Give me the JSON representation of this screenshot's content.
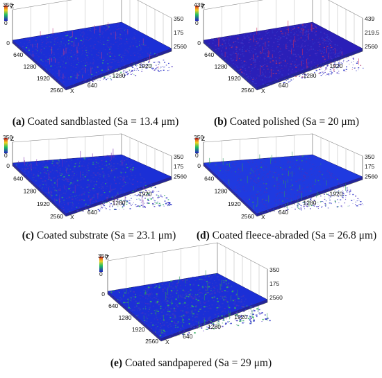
{
  "panels": [
    {
      "id": "a",
      "caption_letter": "(a)",
      "caption_text": " Coated sandblasted (Sa = 13.4 μm)",
      "z_max_label": "350",
      "z_min_label": "0",
      "z_axis_letter": "Z",
      "right_z_ticks": [
        "350",
        "175",
        "2560"
      ],
      "front_ticks": [
        "0",
        "640",
        "1280",
        "1920",
        "2560"
      ],
      "side_ticks": [
        "640",
        "1280",
        "1920"
      ],
      "x_axis_letter": "X",
      "surface": {
        "base": "#1b2fd6",
        "speckle": "#3bb56a",
        "spike": "#c03a8a",
        "roughness": 0.35
      }
    },
    {
      "id": "b",
      "caption_letter": "(b)",
      "caption_text": " Coated polished (Sa = 20 μm)",
      "z_max_label": "439",
      "z_min_label": "0",
      "z_axis_letter": "Z",
      "right_z_ticks": [
        "439",
        "219.5",
        "2560"
      ],
      "front_ticks": [
        "0",
        "640",
        "1280",
        "1920",
        "2560"
      ],
      "side_ticks": [
        "640",
        "1280",
        "1920"
      ],
      "x_axis_letter": "X",
      "surface": {
        "base": "#2a1fb8",
        "speckle": "#b03068",
        "spike": "#d02a5a",
        "roughness": 0.45
      }
    },
    {
      "id": "c",
      "caption_letter": "(c)",
      "caption_text": " Coated substrate (Sa = 23.1 μm)",
      "z_max_label": "350",
      "z_min_label": "0",
      "z_axis_letter": "Z",
      "right_z_ticks": [
        "350",
        "175",
        "2560"
      ],
      "front_ticks": [
        "0",
        "640",
        "1280",
        "1920",
        "2560"
      ],
      "side_ticks": [
        "640",
        "1280",
        "1920"
      ],
      "x_axis_letter": "X",
      "surface": {
        "base": "#1b2fd6",
        "speckle": "#2fa86a",
        "spike": "#7a2fb0",
        "roughness": 0.6
      }
    },
    {
      "id": "d",
      "caption_letter": "(d)",
      "caption_text": " Coated fleece-abraded (Sa = 26.8 μm)",
      "z_max_label": "350",
      "z_min_label": "0",
      "z_axis_letter": "Z",
      "right_z_ticks": [
        "350",
        "175",
        "2560"
      ],
      "front_ticks": [
        "0",
        "640",
        "1280",
        "1920",
        "2560"
      ],
      "side_ticks": [
        "640",
        "1280",
        "1920"
      ],
      "x_axis_letter": "X",
      "surface": {
        "base": "#1f3ae0",
        "speckle": "#2c9a5e",
        "spike": "#2c9a5e",
        "roughness": 0.3
      }
    },
    {
      "id": "e",
      "caption_letter": "(e)",
      "caption_text": " Coated sandpapered (Sa = 29 μm)",
      "z_max_label": "350",
      "z_min_label": "0",
      "z_axis_letter": "Z",
      "right_z_ticks": [
        "350",
        "175",
        "2560"
      ],
      "front_ticks": [
        "0",
        "640",
        "1280",
        "1920",
        "2560"
      ],
      "side_ticks": [
        "640",
        "1280",
        "1920"
      ],
      "x_axis_letter": "X",
      "surface": {
        "base": "#1b2fd6",
        "speckle": "#34b060",
        "spike": "#2f9a55",
        "roughness": 0.75
      }
    }
  ]
}
